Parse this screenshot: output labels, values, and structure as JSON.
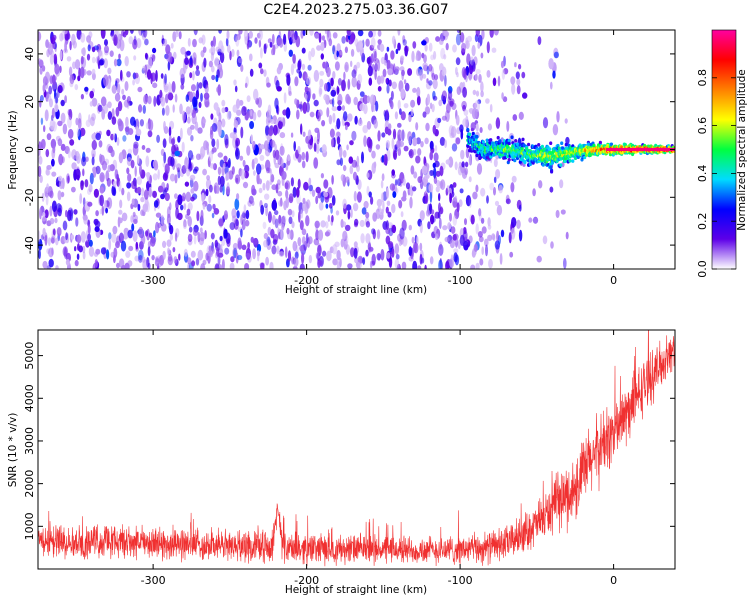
{
  "chart_data": [
    {
      "type": "heatmap",
      "title": "C2E4.2023.275.03.36.G07",
      "xlabel": "Height of straight line (km)",
      "ylabel": "Frequency (Hz)",
      "xlim": [
        -375,
        40
      ],
      "ylim": [
        -50,
        50
      ],
      "xticks": [
        -300,
        -200,
        -100,
        0
      ],
      "yticks": [
        -40,
        -20,
        0,
        20,
        40
      ],
      "colorbar": {
        "label": "Normalized spectral amplitude",
        "range": [
          0,
          1
        ],
        "ticks": [
          0.0,
          0.2,
          0.4,
          0.6,
          0.8
        ],
        "colors": [
          "#ffffff",
          "#5d00e8",
          "#0000ff",
          "#00dcff",
          "#00ff40",
          "#ffff00",
          "#ff8000",
          "#ff0000",
          "#ff00a0"
        ]
      },
      "noise_region": {
        "x_range": [
          -375,
          -50
        ],
        "freq_range": [
          -50,
          50
        ],
        "amplitude_range": [
          0.03,
          0.25
        ]
      },
      "signal_band": [
        {
          "x": -95,
          "freq_center": 5,
          "freq_halfwidth": 4,
          "amplitude": 0.4
        },
        {
          "x": -85,
          "freq_center": 0,
          "freq_halfwidth": 4,
          "amplitude": 0.45
        },
        {
          "x": -70,
          "freq_center": 0,
          "freq_halfwidth": 4,
          "amplitude": 0.5
        },
        {
          "x": -55,
          "freq_center": -2,
          "freq_halfwidth": 4,
          "amplitude": 0.5
        },
        {
          "x": -40,
          "freq_center": -3,
          "freq_halfwidth": 5,
          "amplitude": 0.55
        },
        {
          "x": -25,
          "freq_center": -1,
          "freq_halfwidth": 3,
          "amplitude": 0.6
        },
        {
          "x": -10,
          "freq_center": 0,
          "freq_halfwidth": 2,
          "amplitude": 0.8
        },
        {
          "x": 5,
          "freq_center": 0,
          "freq_halfwidth": 2,
          "amplitude": 0.85
        },
        {
          "x": 20,
          "freq_center": 0,
          "freq_halfwidth": 1.5,
          "amplitude": 0.9
        },
        {
          "x": 40,
          "freq_center": 0,
          "freq_halfwidth": 1,
          "amplitude": 0.95
        }
      ]
    },
    {
      "type": "line",
      "xlabel": "Height of straight line (km)",
      "ylabel": "SNR (10 * v/v)",
      "xlim": [
        -375,
        40
      ],
      "ylim": [
        0,
        5600
      ],
      "xticks": [
        -300,
        -200,
        -100,
        0
      ],
      "yticks": [
        1000,
        2000,
        3000,
        4000,
        5000
      ],
      "color": "#f03030",
      "series": [
        {
          "x": [
            -375,
            -350,
            -330,
            -300,
            -270,
            -240,
            -222,
            -219,
            -216,
            -212,
            -200,
            -180,
            -150,
            -120,
            -100,
            -85,
            -70,
            -60,
            -50,
            -40,
            -35,
            -30,
            -25,
            -20,
            -15,
            -10,
            -5,
            0,
            5,
            10,
            15,
            20,
            25,
            30,
            35,
            40
          ],
          "y": [
            700,
            620,
            650,
            600,
            570,
            540,
            520,
            1500,
            550,
            480,
            480,
            470,
            460,
            440,
            450,
            480,
            600,
            800,
            1050,
            1400,
            1600,
            1700,
            1900,
            2200,
            2550,
            2800,
            3000,
            3200,
            3450,
            3700,
            4000,
            4300,
            4500,
            4750,
            4950,
            5200
          ],
          "noise": [
            380,
            380,
            380,
            380,
            380,
            360,
            360,
            300,
            360,
            360,
            360,
            360,
            340,
            340,
            350,
            370,
            400,
            450,
            500,
            600,
            700,
            750,
            800,
            850,
            850,
            850,
            800,
            800,
            780,
            750,
            700,
            650,
            600,
            550,
            500,
            450
          ]
        }
      ]
    }
  ]
}
